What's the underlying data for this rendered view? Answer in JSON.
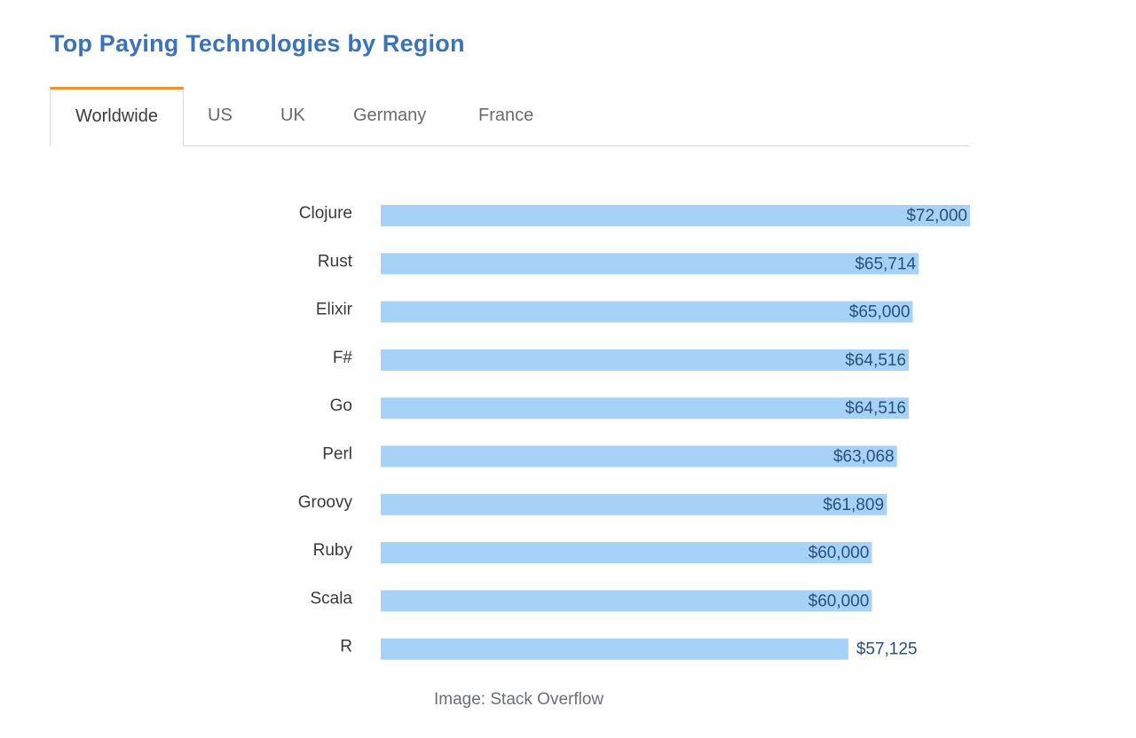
{
  "chart_data": {
    "type": "bar",
    "orientation": "horizontal",
    "title": "Top Paying Technologies by Region",
    "categories": [
      "Clojure",
      "Rust",
      "Elixir",
      "F#",
      "Go",
      "Perl",
      "Groovy",
      "Ruby",
      "Scala",
      "R"
    ],
    "values": [
      72000,
      65714,
      65000,
      64516,
      64516,
      63068,
      61809,
      60000,
      60000,
      57125
    ],
    "data_labels": [
      "$72,000",
      "$65,714",
      "$65,000",
      "$64,516",
      "$64,516",
      "$63,068",
      "$61,809",
      "$60,000",
      "$60,000",
      "$57,125"
    ],
    "xlim": [
      0,
      72000
    ],
    "grid": false,
    "bar_color": "#a6d2f8",
    "label_color": "#2c4f7c"
  },
  "tabs": [
    {
      "label": "Worldwide",
      "active": true
    },
    {
      "label": "US",
      "active": false
    },
    {
      "label": "UK",
      "active": false
    },
    {
      "label": "Germany",
      "active": false
    },
    {
      "label": "France",
      "active": false
    }
  ],
  "caption": "Image: Stack Overflow",
  "colors": {
    "title": "#3b73b9",
    "active_tab_accent": "#f0922b"
  }
}
